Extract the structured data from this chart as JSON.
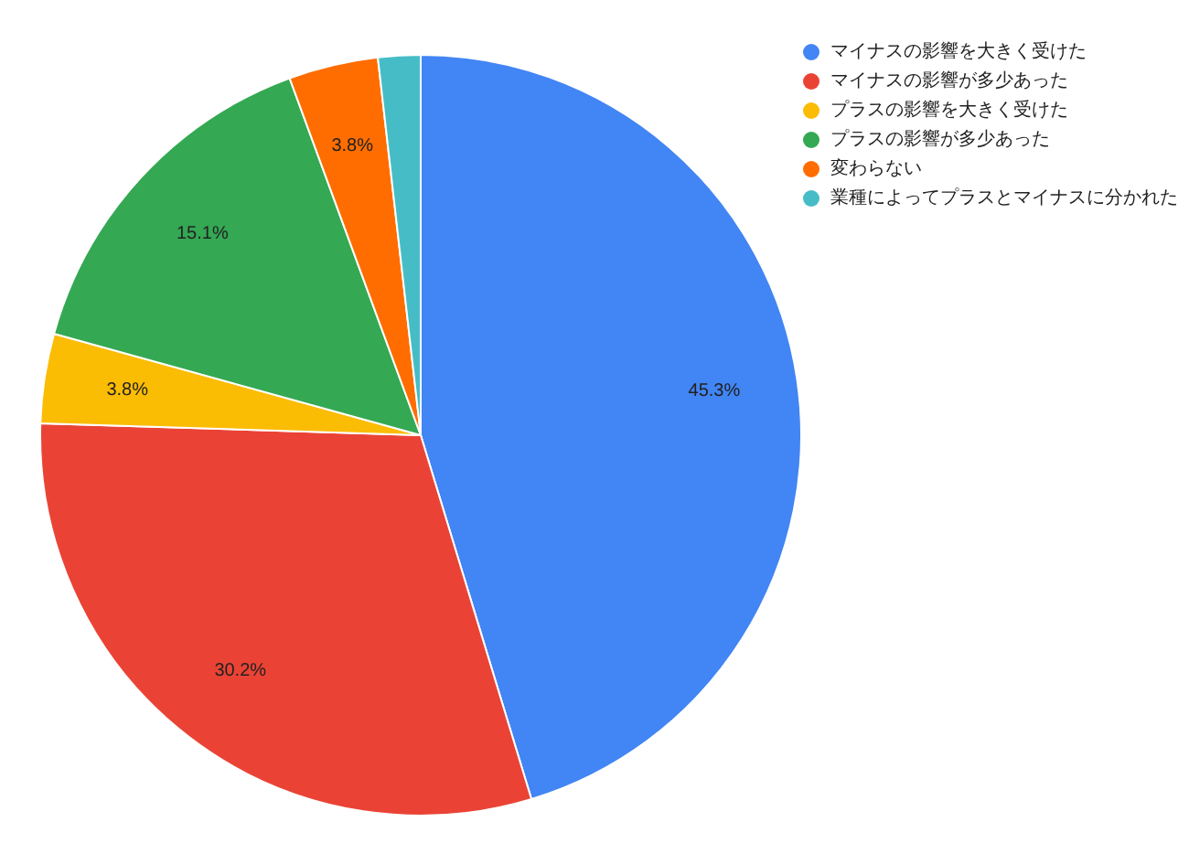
{
  "chart_data": {
    "type": "pie",
    "categories": [
      "マイナスの影響を大きく受けた",
      "マイナスの影響が多少あった",
      "プラスの影響を大きく受けた",
      "プラスの影響が多少あった",
      "変わらない",
      "業種によってプラスとマイナスに分かれた"
    ],
    "values": [
      45.3,
      30.2,
      3.8,
      15.1,
      3.8,
      1.8
    ],
    "colors": [
      "#4285f4",
      "#ea4335",
      "#fbbc04",
      "#34a853",
      "#ff6d01",
      "#46bdc6"
    ],
    "value_labels": [
      "45.3%",
      "30.2%",
      "3.8%",
      "15.1%",
      "3.8%",
      null
    ],
    "legend": "top right"
  }
}
